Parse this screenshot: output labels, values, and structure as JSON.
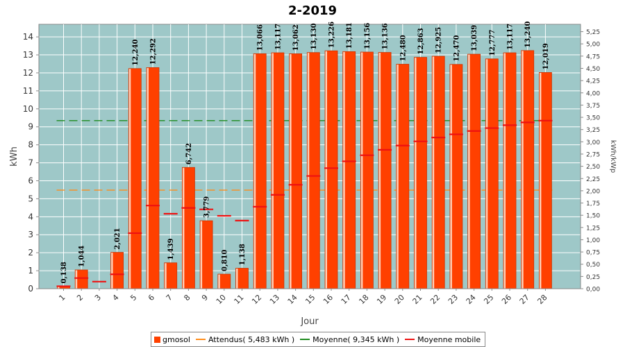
{
  "chart_data": {
    "type": "bar",
    "title": "2-2019",
    "xlabel": "Jour",
    "ylabel": "kWh",
    "ylabel_right": "kWh/kWp",
    "ylim": [
      0,
      14.7
    ],
    "ylim_right": [
      0,
      5.4
    ],
    "yticks": [
      "0",
      "1",
      "2",
      "3",
      "4",
      "5",
      "6",
      "7",
      "8",
      "9",
      "10",
      "11",
      "12",
      "13",
      "14"
    ],
    "yticks_right": [
      "0,00",
      "0,25",
      "0,50",
      "0,75",
      "1,00",
      "1,25",
      "1,50",
      "1,75",
      "2,00",
      "2,25",
      "2,50",
      "2,75",
      "3,00",
      "3,25",
      "3,50",
      "3,75",
      "4,00",
      "4,25",
      "4,50",
      "4,75",
      "5,00",
      "5,25"
    ],
    "categories": [
      "1",
      "2",
      "3",
      "4",
      "5",
      "6",
      "7",
      "8",
      "9",
      "10",
      "11",
      "12",
      "13",
      "14",
      "15",
      "16",
      "17",
      "18",
      "19",
      "20",
      "21",
      "22",
      "23",
      "24",
      "25",
      "26",
      "27",
      "28"
    ],
    "series": [
      {
        "name": "gmosol",
        "values": [
          0.138,
          1.044,
          0,
          2.021,
          12.24,
          12.292,
          1.439,
          6.742,
          3.779,
          0.81,
          1.138,
          13.066,
          13.117,
          13.062,
          13.13,
          13.226,
          13.181,
          13.156,
          13.136,
          12.48,
          12.863,
          12.925,
          12.47,
          13.039,
          12.777,
          13.117,
          13.24,
          12.019
        ],
        "labels": [
          "0,138",
          "1,044",
          "",
          "2,021",
          "12,240",
          "12,292",
          "1,439",
          "6,742",
          "3,779",
          "0,810",
          "1,138",
          "13,066",
          "13,117",
          "13,062",
          "13,130",
          "13,226",
          "13,181",
          "13,156",
          "13,136",
          "12,480",
          "12,863",
          "12,925",
          "12,470",
          "13,039",
          "12,777",
          "13,117",
          "13,240",
          "12,019"
        ]
      },
      {
        "name": "Attendus( 5,483 kWh )",
        "value": 5.483
      },
      {
        "name": "Moyenne( 9,345 kWh )",
        "value": 9.345
      },
      {
        "name": "Moyenne mobile",
        "values": [
          0.138,
          0.591,
          0.394,
          0.801,
          3.089,
          4.622,
          4.167,
          4.489,
          4.41,
          4.05,
          3.785,
          4.559,
          5.217,
          5.777,
          6.267,
          6.701,
          7.082,
          7.419,
          7.72,
          7.958,
          8.191,
          8.406,
          8.583,
          8.769,
          8.93,
          9.091,
          9.245,
          9.345
        ]
      }
    ],
    "colors": {
      "plot_bg": "#9ec8c8",
      "bar": "#ff4000",
      "bar_edge": "#cc3300",
      "bar_highlight": "#ffd0b8",
      "attendus": "#ff8c1a",
      "moyenne": "#1e8a1e",
      "moyenne_mobile": "#ee1111"
    },
    "grid": true,
    "legend_position": "bottom"
  },
  "legend": {
    "items": [
      {
        "label": "gmosol",
        "kind": "box",
        "color": "#ff4000"
      },
      {
        "label": "Attendus( 5,483 kWh )",
        "kind": "line",
        "color": "#ff8c1a"
      },
      {
        "label": "Moyenne( 9,345 kWh )",
        "kind": "line",
        "color": "#1e8a1e"
      },
      {
        "label": "Moyenne mobile",
        "kind": "line",
        "color": "#ee1111"
      }
    ]
  }
}
